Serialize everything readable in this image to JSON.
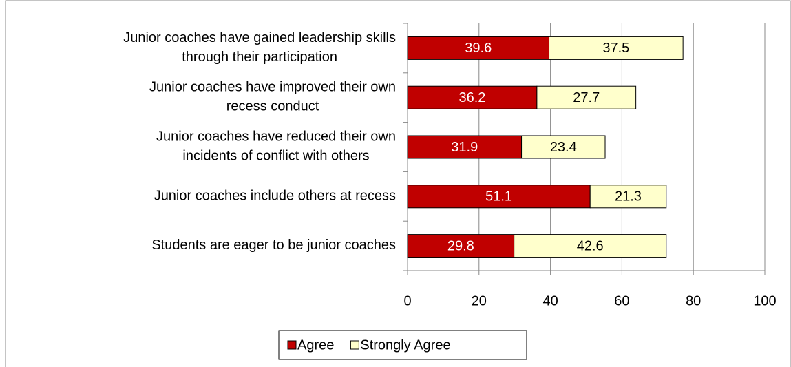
{
  "chart_data": {
    "type": "stacked-bar-horizontal",
    "categories": [
      "Junior coaches have gained leadership skills\nthrough their participation",
      "Junior coaches have improved their own\nrecess conduct",
      "Junior coaches have reduced their own\nincidents of conflict with others",
      "Junior coaches include others at recess",
      "Students are eager to be junior coaches"
    ],
    "series": [
      {
        "name": "Agree",
        "color": "#c00000",
        "label_color": "#ffffff",
        "values": [
          39.6,
          36.2,
          31.9,
          51.1,
          29.8
        ]
      },
      {
        "name": "Strongly Agree",
        "color": "#ffffcc",
        "label_color": "#000000",
        "values": [
          37.5,
          27.7,
          23.4,
          21.3,
          42.6
        ]
      }
    ],
    "xlim": [
      0,
      100
    ],
    "xticks": [
      0,
      20,
      40,
      60,
      80,
      100
    ],
    "grid": true,
    "legend": "bottom"
  }
}
